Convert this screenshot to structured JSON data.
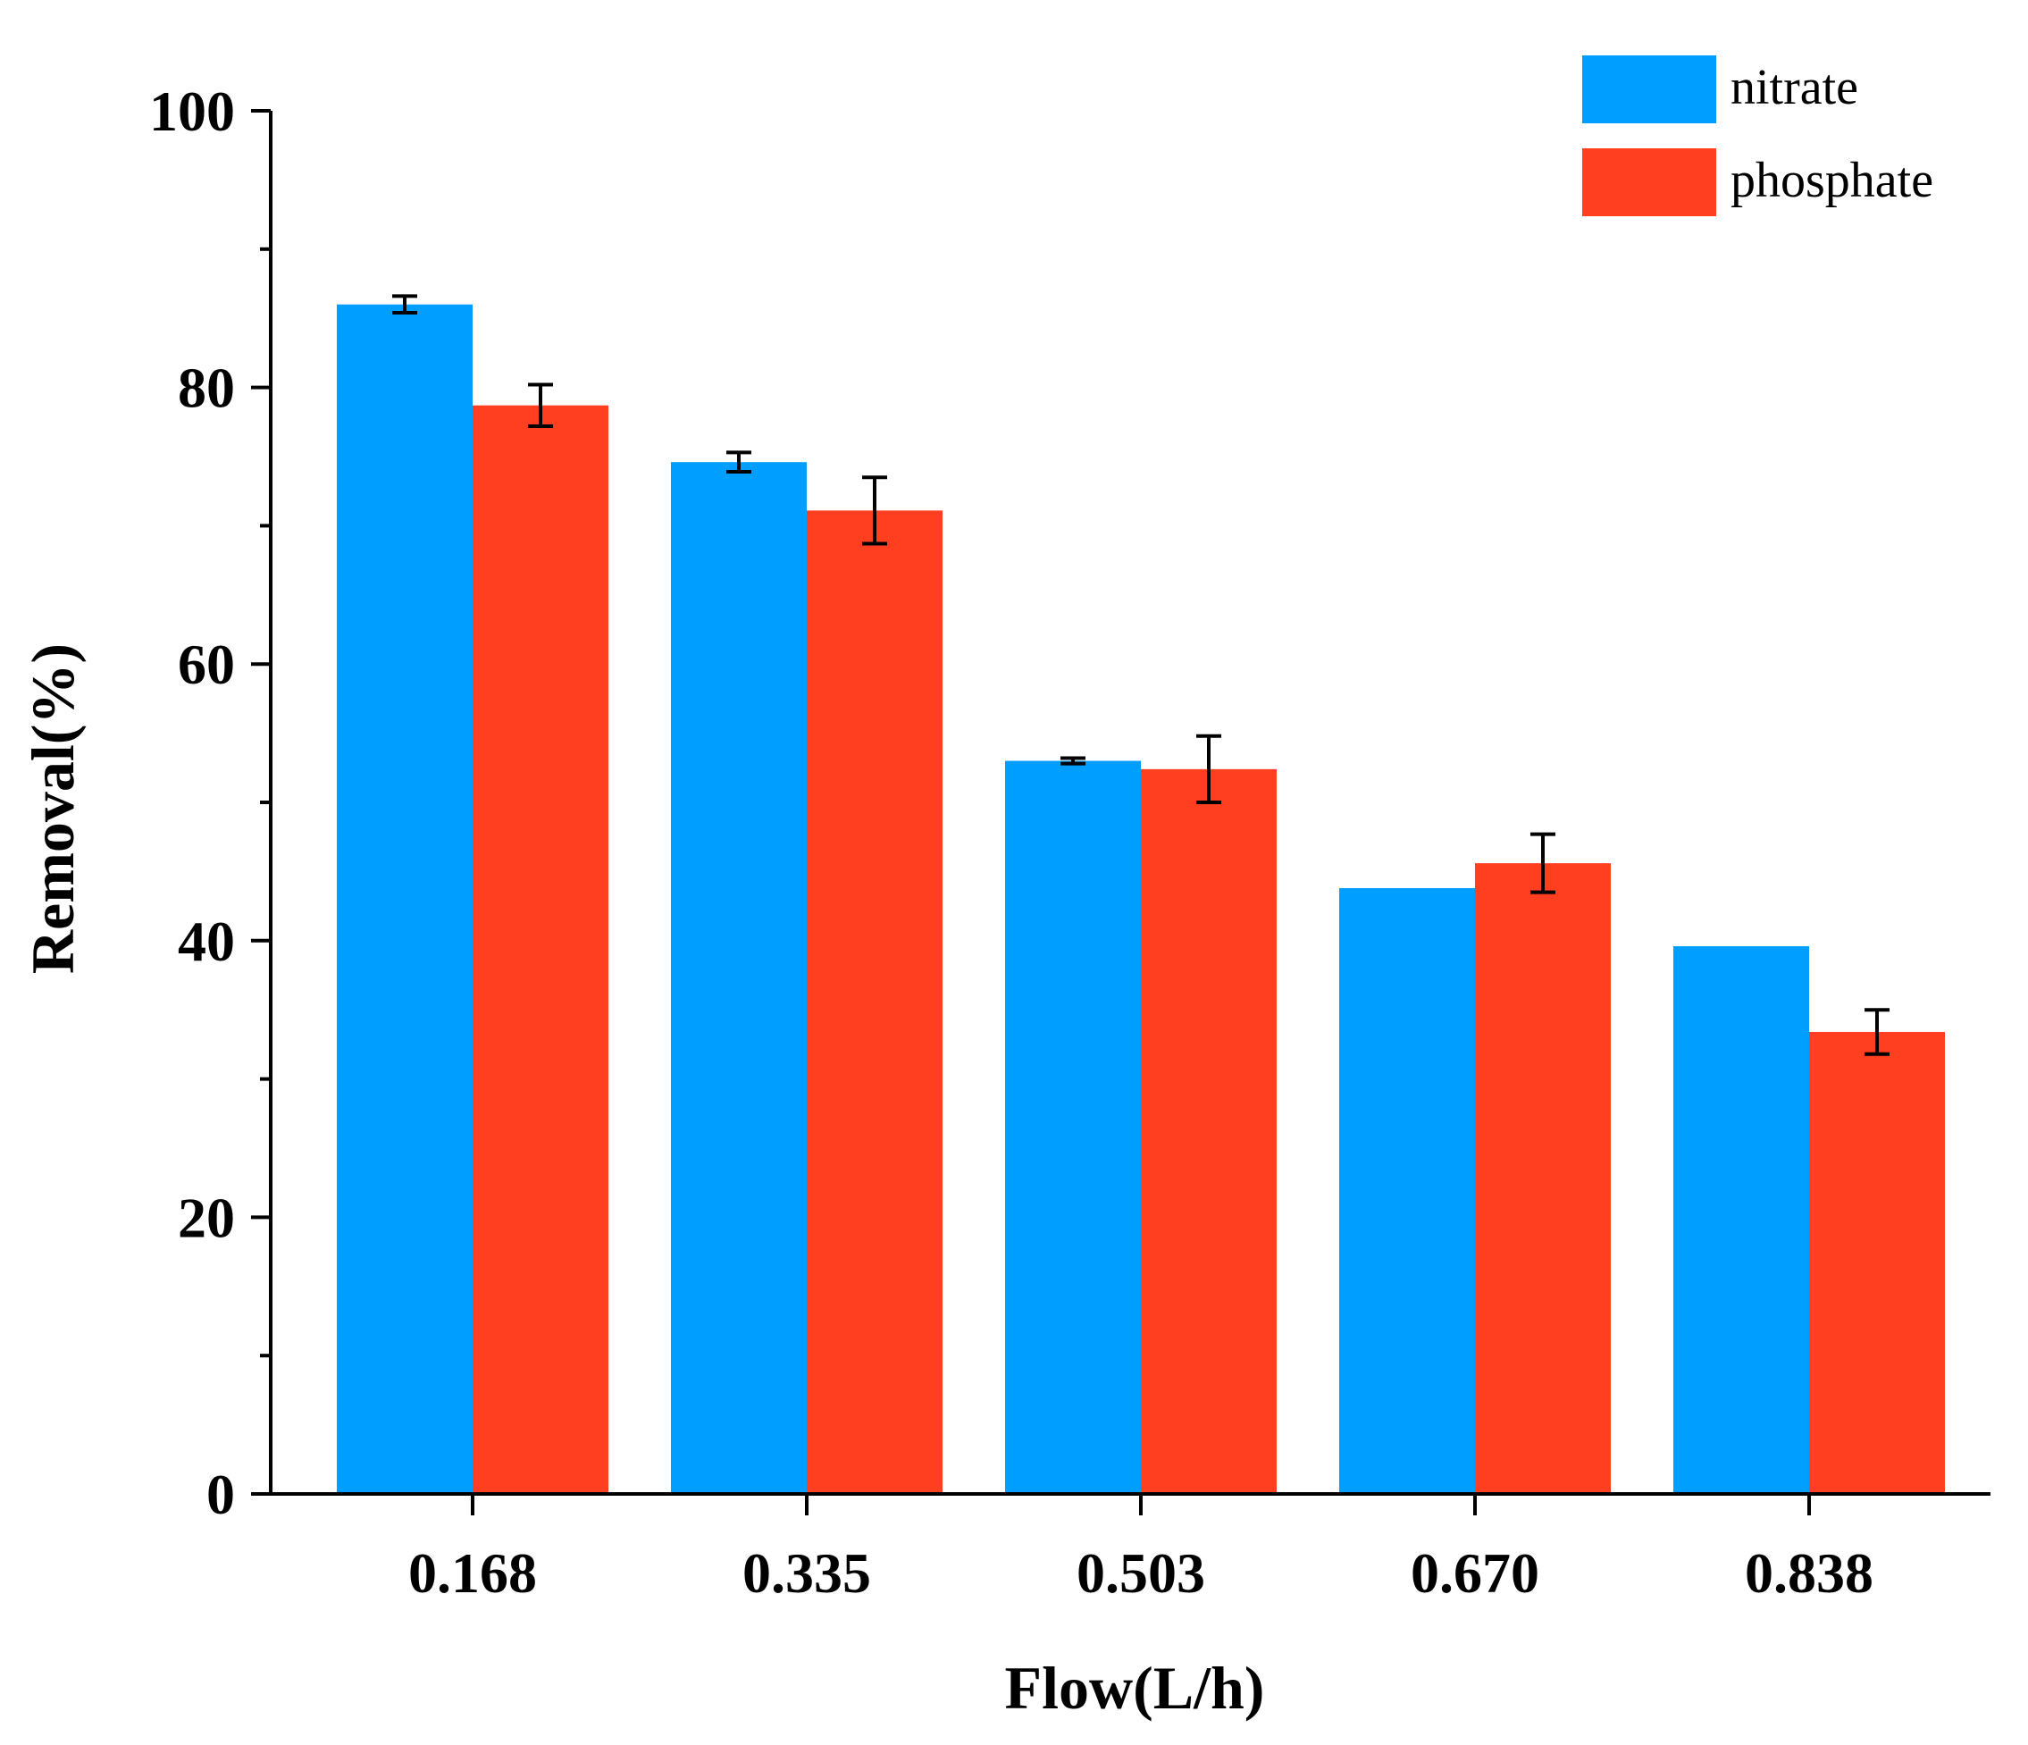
{
  "chart_data": {
    "type": "bar",
    "title": "",
    "xlabel": "Flow(L/h)",
    "ylabel": "Removal(%)",
    "ylim": [
      0,
      100
    ],
    "yticks": [
      0,
      20,
      40,
      60,
      80,
      100
    ],
    "categories": [
      "0.168",
      "0.335",
      "0.503",
      "0.670",
      "0.838"
    ],
    "series": [
      {
        "name": "nitrate",
        "color": "#009FFF",
        "values": [
          86.0,
          74.6,
          53.0,
          43.8,
          39.6
        ],
        "errors": [
          0.6,
          0.7,
          0.2,
          0.0,
          0.0
        ]
      },
      {
        "name": "phosphate",
        "color": "#FF3F1F",
        "values": [
          78.7,
          71.1,
          52.4,
          45.6,
          33.4
        ],
        "errors": [
          1.5,
          2.4,
          2.4,
          2.1,
          1.6
        ]
      }
    ],
    "legend_position": "top-right"
  }
}
